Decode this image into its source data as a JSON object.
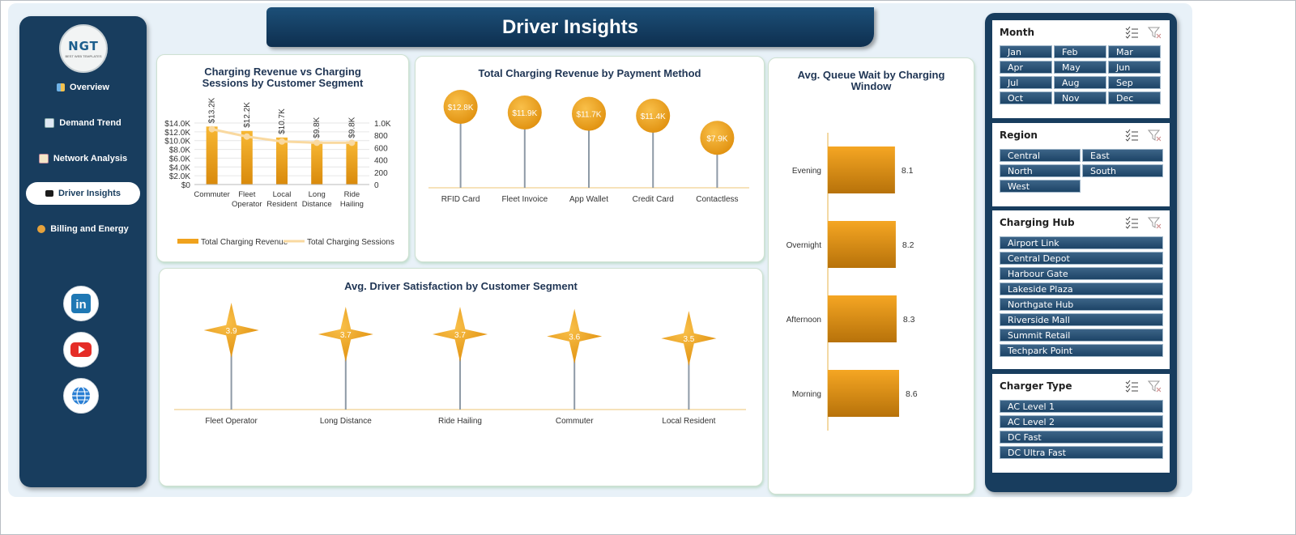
{
  "header": {
    "title": "Driver Insights"
  },
  "logo": {
    "text": "NGT",
    "subtext": "BEST WEB TEMPLATES"
  },
  "sidebar": {
    "items": [
      {
        "label": "Overview",
        "icon": "bar-chart-icon",
        "active": false
      },
      {
        "label": "Demand Trend",
        "icon": "trend-chart-icon",
        "active": false
      },
      {
        "label": "Network Analysis",
        "icon": "clipboard-icon",
        "active": false
      },
      {
        "label": "Driver Insights",
        "icon": "folder-icon",
        "active": true
      },
      {
        "label": "Billing and Energy",
        "icon": "money-bag-icon",
        "active": false
      }
    ],
    "social": [
      "linkedin-icon",
      "youtube-icon",
      "web-globe-icon"
    ]
  },
  "chart_data": [
    {
      "type": "bar",
      "title": "Charging Revenue vs Charging Sessions by Customer Segment",
      "categories": [
        "Commuter",
        "Fleet Operator",
        "Local Resident",
        "Long Distance",
        "Ride Hailing"
      ],
      "series": [
        {
          "name": "Total Charging Revenue",
          "type": "bar",
          "axis": "left",
          "values": [
            13200,
            12200,
            10700,
            9800,
            9800
          ],
          "labels": [
            "$13.2K",
            "$12.2K",
            "$10.7K",
            "$9.8K",
            "$9.8K"
          ]
        },
        {
          "name": "Total Charging Sessions",
          "type": "line",
          "axis": "right",
          "values": [
            900,
            780,
            700,
            680,
            680
          ]
        }
      ],
      "y_ticks": [
        "$14.0K",
        "$12.0K",
        "$10.0K",
        "$8.0K",
        "$6.0K",
        "$4.0K",
        "$2.0K",
        "$0"
      ],
      "ylim": [
        0,
        14000
      ],
      "y2_ticks": [
        "1.0K",
        "800",
        "600",
        "400",
        "200",
        "0"
      ],
      "y2lim": [
        0,
        1000
      ],
      "legend": "bottom",
      "colors": {
        "bar": "#f0a21d",
        "line": "#f9d9a0"
      }
    },
    {
      "type": "lollipop",
      "title": "Total Charging Revenue by Payment Method",
      "categories": [
        "RFID Card",
        "Fleet Invoice",
        "App Wallet",
        "Credit Card",
        "Contactless"
      ],
      "values": [
        12800,
        11900,
        11700,
        11400,
        7900
      ],
      "labels": [
        "$12.8K",
        "$11.9K",
        "$11.7K",
        "$11.4K",
        "$7.9K"
      ]
    },
    {
      "type": "bar",
      "orientation": "horizontal",
      "title": "Avg. Queue Wait by Charging Window",
      "categories": [
        "Evening",
        "Overnight",
        "Afternoon",
        "Morning"
      ],
      "values": [
        8.1,
        8.2,
        8.3,
        8.6
      ],
      "labels": [
        "8.1",
        "8.2",
        "8.3",
        "8.6"
      ]
    },
    {
      "type": "lollipop",
      "marker": "star",
      "title": "Avg. Driver Satisfaction by Customer Segment",
      "categories": [
        "Fleet Operator",
        "Long Distance",
        "Ride Hailing",
        "Commuter",
        "Local Resident"
      ],
      "values": [
        3.9,
        3.7,
        3.7,
        3.6,
        3.5
      ],
      "labels": [
        "3.9",
        "3.7",
        "3.7",
        "3.6",
        "3.5"
      ]
    }
  ],
  "slicers": [
    {
      "title": "Month",
      "items": [
        "Jan",
        "Feb",
        "Mar",
        "Apr",
        "May",
        "Jun",
        "Jul",
        "Aug",
        "Sep",
        "Oct",
        "Nov",
        "Dec"
      ]
    },
    {
      "title": "Region",
      "items": [
        "Central",
        "East",
        "North",
        "South",
        "West"
      ]
    },
    {
      "title": "Charging Hub",
      "items": [
        "Airport Link",
        "Central Depot",
        "Harbour Gate",
        "Lakeside Plaza",
        "Northgate Hub",
        "Riverside Mall",
        "Summit Retail",
        "Techpark Point"
      ]
    },
    {
      "title": "Charger Type",
      "items": [
        "AC Level 1",
        "AC Level 2",
        "DC Fast",
        "DC Ultra Fast"
      ]
    }
  ]
}
